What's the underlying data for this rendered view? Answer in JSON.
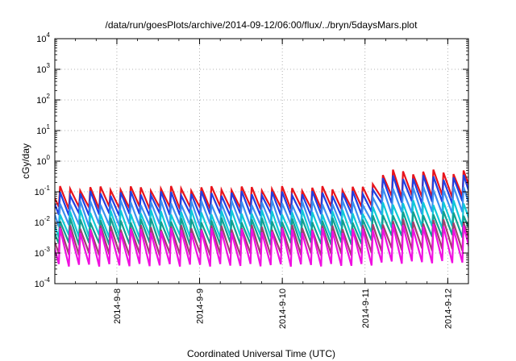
{
  "chart_data": {
    "type": "line",
    "title": "/data/run/goesPlots/archive/2014-09-12/06:00/flux/../bryn/5daysMars.plot",
    "xlabel": "Coordinated Universal Time (UTC)",
    "ylabel": "cGy/day",
    "y_scale": "log",
    "ylim": [
      0.0001,
      10000
    ],
    "y_ticks": [
      {
        "base": "10",
        "exp": "-4",
        "value": 0.0001
      },
      {
        "base": "10",
        "exp": "-3",
        "value": 0.001
      },
      {
        "base": "10",
        "exp": "-2",
        "value": 0.01
      },
      {
        "base": "10",
        "exp": "-1",
        "value": 0.1
      },
      {
        "base": "10",
        "exp": "0",
        "value": 1
      },
      {
        "base": "10",
        "exp": "1",
        "value": 10
      },
      {
        "base": "10",
        "exp": "2",
        "value": 100
      },
      {
        "base": "10",
        "exp": "3",
        "value": 1000
      },
      {
        "base": "10",
        "exp": "4",
        "value": 10000
      }
    ],
    "xlim": [
      "2014-09-07 06:00",
      "2014-09-12 06:00"
    ],
    "x_ticks": [
      "2014-9-8",
      "2014-9-9",
      "2014-9-10",
      "2014-9-11",
      "2014-9-12"
    ],
    "grid": true,
    "legend": "none",
    "pattern": "sawtooth, period ~3 h (~40 cycles over 5 days); sharp rise then decay each cycle; step increase after 2014-9-11",
    "series": [
      {
        "color": "#e8141c",
        "peak_before": 0.13,
        "trough_before": 0.03,
        "peak_after": 0.45,
        "trough_after": 0.07
      },
      {
        "color": "#2040e0",
        "peak_before": 0.09,
        "trough_before": 0.018,
        "peak_after": 0.3,
        "trough_after": 0.045
      },
      {
        "color": "#3a8ef0",
        "peak_before": 0.045,
        "trough_before": 0.008,
        "peak_after": 0.13,
        "trough_after": 0.02
      },
      {
        "color": "#10c8d8",
        "peak_before": 0.022,
        "trough_before": 0.0035,
        "peak_after": 0.045,
        "trough_after": 0.007
      },
      {
        "color": "#12a090",
        "peak_before": 0.012,
        "trough_before": 0.002,
        "peak_after": 0.02,
        "trough_after": 0.0035
      },
      {
        "color": "#a04070",
        "peak_before": 0.007,
        "trough_before": 0.0009,
        "peak_after": 0.011,
        "trough_after": 0.0013
      },
      {
        "color": "#f010e0",
        "peak_before": 0.0055,
        "trough_before": 0.0004,
        "peak_after": 0.0075,
        "trough_after": 0.0005
      }
    ]
  }
}
